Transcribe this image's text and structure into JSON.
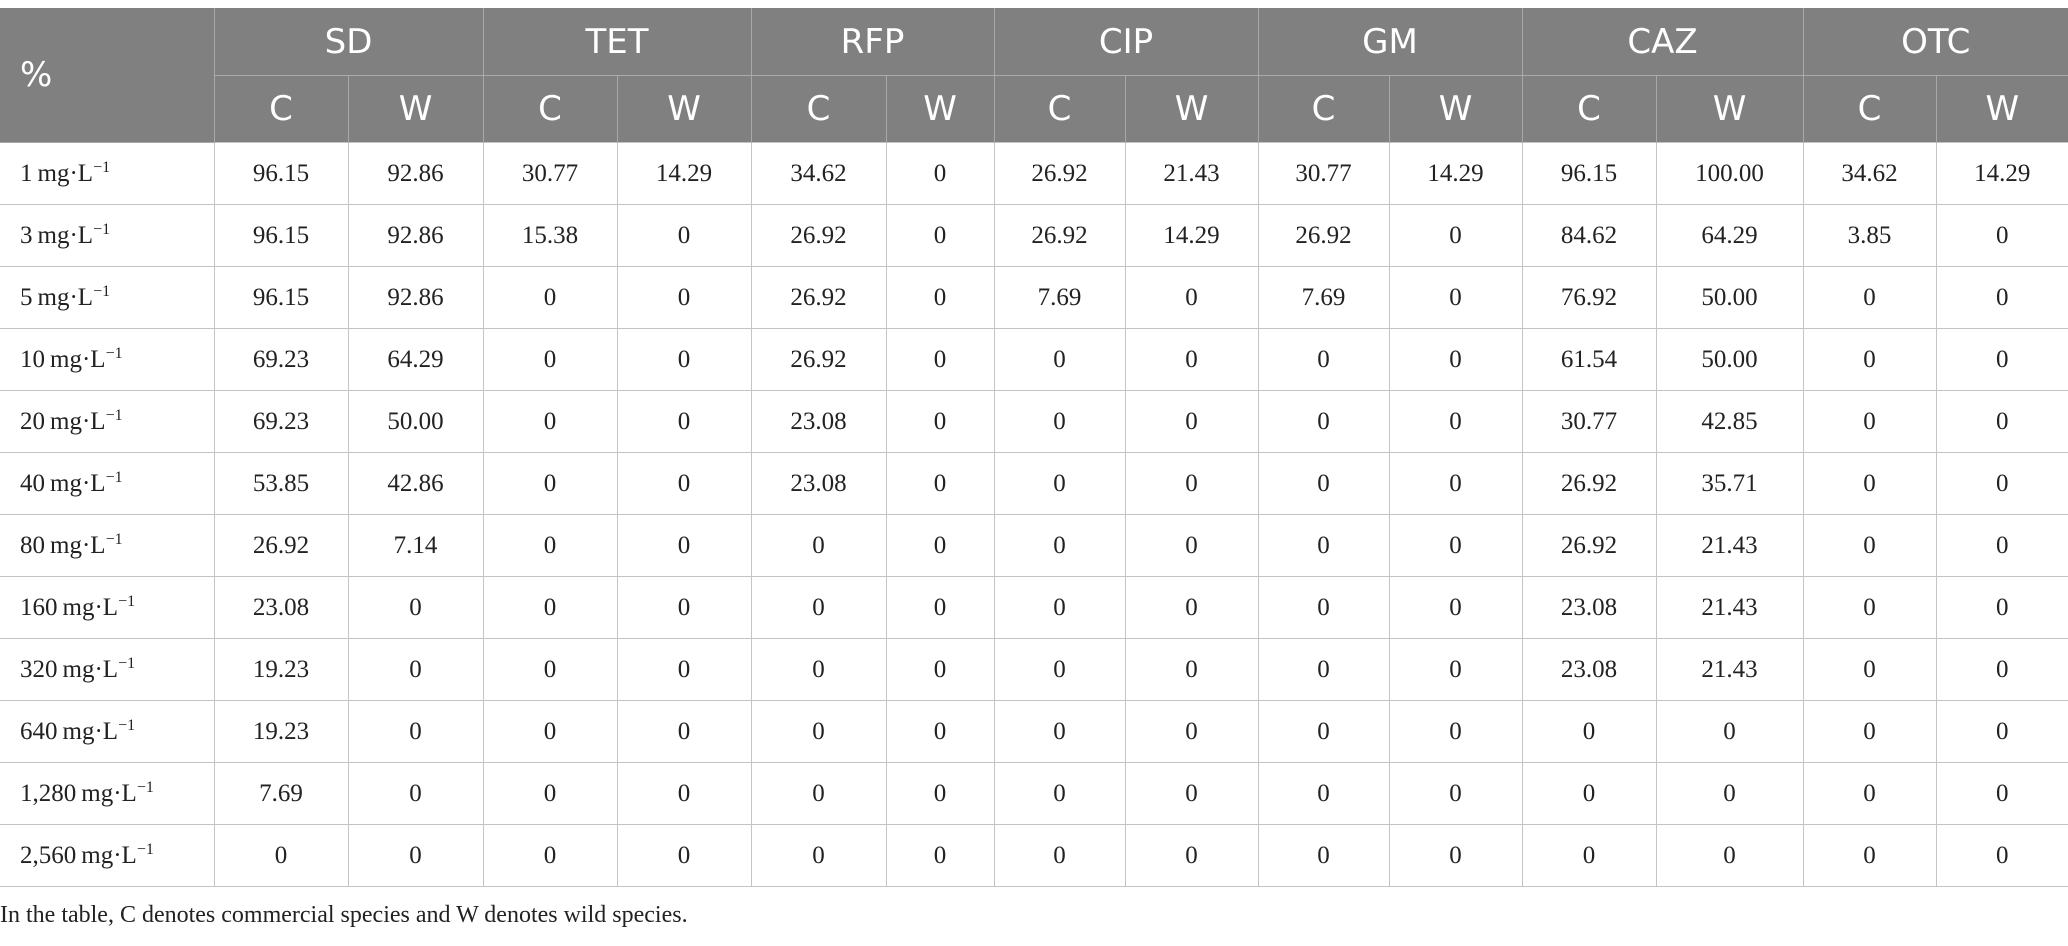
{
  "table": {
    "corner_label": "%",
    "groups": [
      "SD",
      "TET",
      "RFP",
      "CIP",
      "GM",
      "CAZ",
      "OTC"
    ],
    "subheaders": [
      "C",
      "W"
    ],
    "unit": "mg·L",
    "unit_exponent": "−1",
    "rows": [
      {
        "dose": "1",
        "values": [
          "96.15",
          "92.86",
          "30.77",
          "14.29",
          "34.62",
          "0",
          "26.92",
          "21.43",
          "30.77",
          "14.29",
          "96.15",
          "100.00",
          "34.62",
          "14.29"
        ]
      },
      {
        "dose": "3",
        "values": [
          "96.15",
          "92.86",
          "15.38",
          "0",
          "26.92",
          "0",
          "26.92",
          "14.29",
          "26.92",
          "0",
          "84.62",
          "64.29",
          "3.85",
          "0"
        ]
      },
      {
        "dose": "5",
        "values": [
          "96.15",
          "92.86",
          "0",
          "0",
          "26.92",
          "0",
          "7.69",
          "0",
          "7.69",
          "0",
          "76.92",
          "50.00",
          "0",
          "0"
        ]
      },
      {
        "dose": "10",
        "values": [
          "69.23",
          "64.29",
          "0",
          "0",
          "26.92",
          "0",
          "0",
          "0",
          "0",
          "0",
          "61.54",
          "50.00",
          "0",
          "0"
        ]
      },
      {
        "dose": "20",
        "values": [
          "69.23",
          "50.00",
          "0",
          "0",
          "23.08",
          "0",
          "0",
          "0",
          "0",
          "0",
          "30.77",
          "42.85",
          "0",
          "0"
        ]
      },
      {
        "dose": "40",
        "values": [
          "53.85",
          "42.86",
          "0",
          "0",
          "23.08",
          "0",
          "0",
          "0",
          "0",
          "0",
          "26.92",
          "35.71",
          "0",
          "0"
        ]
      },
      {
        "dose": "80",
        "values": [
          "26.92",
          "7.14",
          "0",
          "0",
          "0",
          "0",
          "0",
          "0",
          "0",
          "0",
          "26.92",
          "21.43",
          "0",
          "0"
        ]
      },
      {
        "dose": "160",
        "values": [
          "23.08",
          "0",
          "0",
          "0",
          "0",
          "0",
          "0",
          "0",
          "0",
          "0",
          "23.08",
          "21.43",
          "0",
          "0"
        ]
      },
      {
        "dose": "320",
        "values": [
          "19.23",
          "0",
          "0",
          "0",
          "0",
          "0",
          "0",
          "0",
          "0",
          "0",
          "23.08",
          "21.43",
          "0",
          "0"
        ]
      },
      {
        "dose": "640",
        "values": [
          "19.23",
          "0",
          "0",
          "0",
          "0",
          "0",
          "0",
          "0",
          "0",
          "0",
          "0",
          "0",
          "0",
          "0"
        ]
      },
      {
        "dose": "1,280",
        "values": [
          "7.69",
          "0",
          "0",
          "0",
          "0",
          "0",
          "0",
          "0",
          "0",
          "0",
          "0",
          "0",
          "0",
          "0"
        ]
      },
      {
        "dose": "2,560",
        "values": [
          "0",
          "0",
          "0",
          "0",
          "0",
          "0",
          "0",
          "0",
          "0",
          "0",
          "0",
          "0",
          "0",
          "0"
        ]
      }
    ]
  },
  "footnote": "In the table, C denotes commercial species and W denotes wild species."
}
